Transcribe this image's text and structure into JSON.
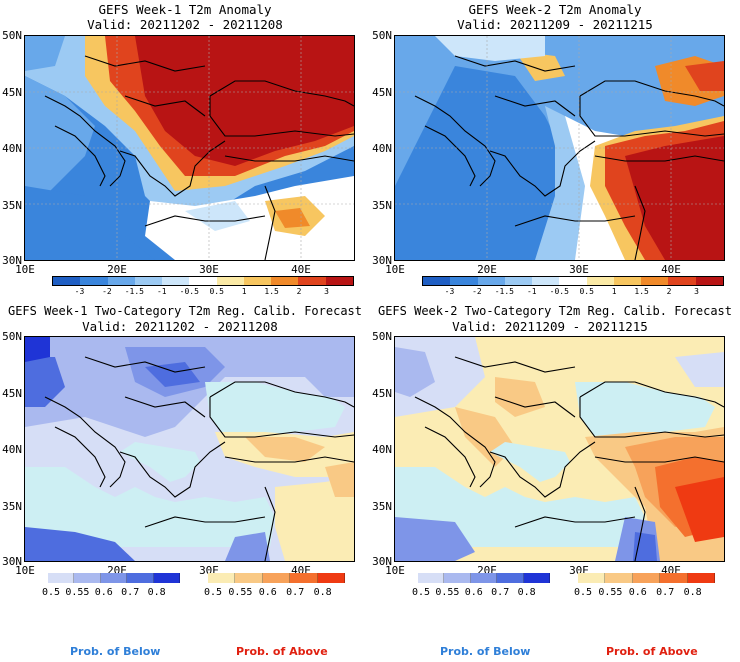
{
  "panels": {
    "tl": {
      "title": "GEFS Week-1 T2m Anomaly",
      "valid": "Valid: 20211202 - 20211208"
    },
    "tr": {
      "title": "GEFS Week-2 T2m Anomaly",
      "valid": "Valid: 20211209 - 20211215"
    },
    "bl": {
      "title": "GEFS Week-1 Two-Category T2m Reg. Calib. Forecast",
      "valid": "Valid: 20211202 - 20211208"
    },
    "br": {
      "title": "GEFS Week-2 Two-Category T2m Reg. Calib. Forecast",
      "valid": "Valid: 20211209 - 20211215"
    }
  },
  "axes": {
    "lat_labels": [
      "50N",
      "45N",
      "40N",
      "35N",
      "30N"
    ],
    "lon_labels": [
      "10E",
      "20E",
      "30E",
      "40E"
    ]
  },
  "anomaly_colorbar": {
    "ticks": [
      "-3",
      "-2",
      "-1.5",
      "-1",
      "-0.5",
      "0.5",
      "1",
      "1.5",
      "2",
      "3"
    ],
    "colors": [
      "#1f5fc4",
      "#3a85dc",
      "#68a8ea",
      "#9ccaf3",
      "#cde6fa",
      "#ffffff",
      "#fbeaa6",
      "#f7c660",
      "#f08a2a",
      "#e0441e",
      "#b81414"
    ]
  },
  "prob_colorbar": {
    "below_ticks": [
      "0.5",
      "0.55",
      "0.6",
      "0.7",
      "0.8"
    ],
    "above_ticks": [
      "0.5",
      "0.55",
      "0.6",
      "0.7",
      "0.8"
    ],
    "below_colors": [
      "#d6def6",
      "#aab9ef",
      "#7e95e8",
      "#4e6ddf",
      "#1f34d6"
    ],
    "above_colors": [
      "#fbecb4",
      "#f9c985",
      "#f7a25a",
      "#f4702e",
      "#ef3a12"
    ]
  },
  "legend": {
    "below": "Prob. of Below",
    "above": "Prob. of Above",
    "below_color": "#2f7fd8",
    "above_color": "#e02010"
  }
}
